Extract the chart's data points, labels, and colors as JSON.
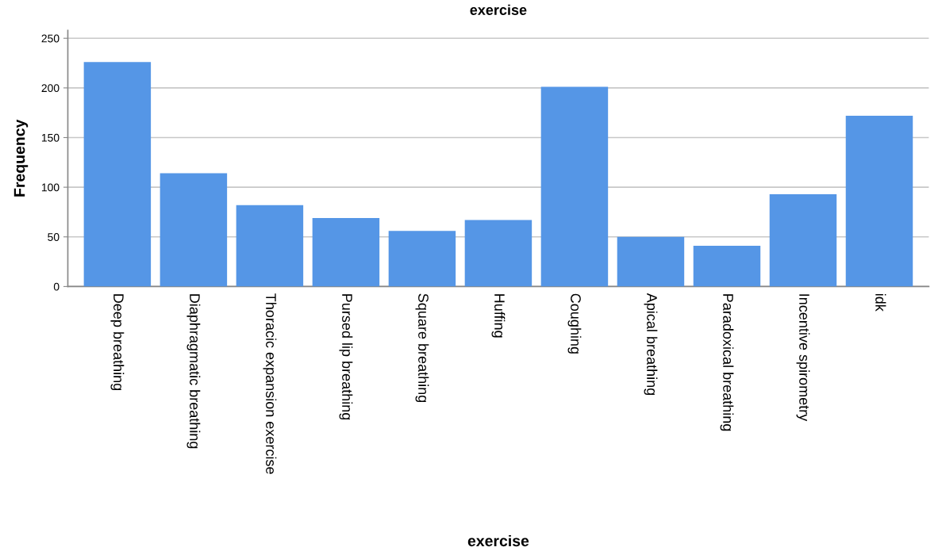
{
  "chart_data": {
    "type": "bar",
    "title": "exercise",
    "xlabel": "exercise",
    "ylabel": "Frequency",
    "categories": [
      "Deep breathing",
      "Diaphragmatic breathing",
      "Thoracic expansion exercise",
      "Pursed lip breathing",
      "Square breathing",
      "Huffing",
      "Coughing",
      "Apical breathing",
      "Paradoxical breathing",
      "Incentive spirometry",
      "idk"
    ],
    "values": [
      226,
      114,
      82,
      69,
      56,
      67,
      201,
      50,
      41,
      93,
      172
    ],
    "color": "#5596e6",
    "ylim": [
      0,
      258
    ],
    "yticks": [
      0,
      50,
      100,
      150,
      200,
      250
    ],
    "grid": "y"
  }
}
